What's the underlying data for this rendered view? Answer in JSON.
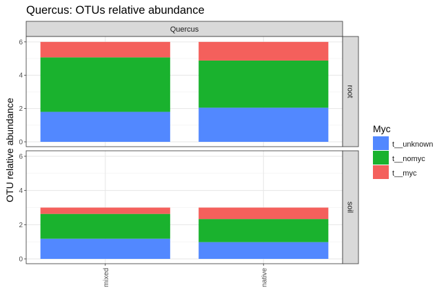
{
  "chart_data": {
    "type": "bar",
    "stacked": true,
    "title": "Quercus: OTUs relative abundance",
    "facet_column_label": "Quercus",
    "xlabel": "",
    "ylabel": "OTU relative abundance",
    "categories": [
      "mixed",
      "native"
    ],
    "y_ticks": [
      "0",
      "2",
      "4",
      "6"
    ],
    "legend": {
      "title": "Myc",
      "position": "right",
      "entries": [
        {
          "label": "t__unknown",
          "color": "#5288FF"
        },
        {
          "label": "t__nomyc",
          "color": "#1AB22E"
        },
        {
          "label": "t__myc",
          "color": "#F4605C"
        }
      ]
    },
    "panels": [
      {
        "label": "root",
        "ylim": [
          0,
          6.2
        ],
        "series": [
          {
            "name": "t__unknown",
            "values": [
              1.8,
              2.05
            ]
          },
          {
            "name": "t__nomyc",
            "values": [
              3.27,
              2.83
            ]
          },
          {
            "name": "t__myc",
            "values": [
              0.93,
              1.12
            ]
          }
        ]
      },
      {
        "label": "soil",
        "ylim": [
          0,
          6.2
        ],
        "series": [
          {
            "name": "t__unknown",
            "values": [
              1.18,
              0.98
            ]
          },
          {
            "name": "t__nomyc",
            "values": [
              1.45,
              1.35
            ]
          },
          {
            "name": "t__myc",
            "values": [
              0.37,
              0.67
            ]
          }
        ]
      }
    ],
    "grid": true
  }
}
